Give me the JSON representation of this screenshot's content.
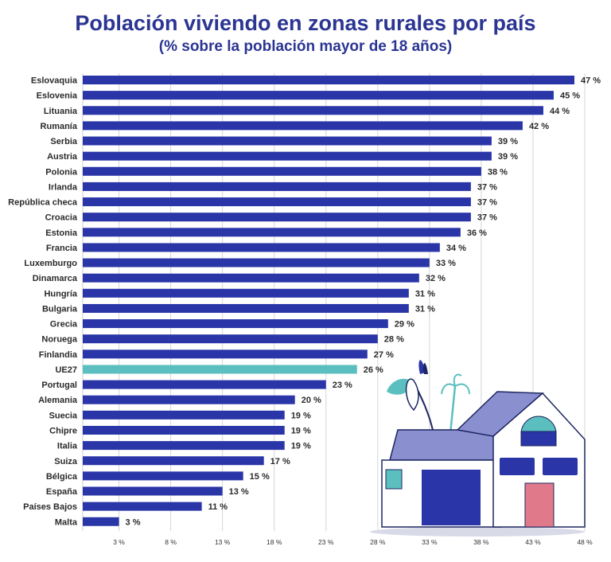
{
  "title": "Población viviendo en zonas rurales por país",
  "subtitle": "(% sobre la población mayor de 18 años)",
  "colors": {
    "bar": "#2a35a8",
    "highlight": "#5cbfbf",
    "title": "#2b3592"
  },
  "chart_data": {
    "type": "bar",
    "orientation": "horizontal",
    "title": "Población viviendo en zonas rurales por país",
    "subtitle": "(% sobre la población mayor de 18 años)",
    "categories": [
      "Eslovaquia",
      "Eslovenia",
      "Lituania",
      "Rumanía",
      "Serbia",
      "Austria",
      "Polonia",
      "Irlanda",
      "República checa",
      "Croacia",
      "Estonia",
      "Francia",
      "Luxemburgo",
      "Dinamarca",
      "Hungría",
      "Bulgaria",
      "Grecia",
      "Noruega",
      "Finlandia",
      "UE27",
      "Portugal",
      "Alemania",
      "Suecia",
      "Chipre",
      "Italia",
      "Suiza",
      "Bélgica",
      "España",
      "Países Bajos",
      "Malta"
    ],
    "values": [
      47,
      45,
      44,
      42,
      39,
      39,
      38,
      37,
      37,
      37,
      36,
      34,
      33,
      32,
      31,
      31,
      29,
      28,
      27,
      26,
      23,
      20,
      19,
      19,
      19,
      17,
      15,
      13,
      11,
      3
    ],
    "value_labels": [
      "47 %",
      "45 %",
      "44 %",
      "42 %",
      "39 %",
      "39 %",
      "38 %",
      "37 %",
      "37 %",
      "37 %",
      "36 %",
      "34 %",
      "33 %",
      "32 %",
      "31 %",
      "31 %",
      "29 %",
      "28 %",
      "27 %",
      "26 %",
      "23 %",
      "20 %",
      "19 %",
      "19 %",
      "19 %",
      "17 %",
      "15 %",
      "13 %",
      "11 %",
      "3 %"
    ],
    "highlight_category": "UE27",
    "x_ticks": [
      3,
      8,
      13,
      18,
      23,
      28,
      33,
      38,
      43,
      48
    ],
    "x_tick_labels": [
      "3 %",
      "8 %",
      "13 %",
      "18 %",
      "23 %",
      "28 %",
      "33 %",
      "38 %",
      "43 %",
      "48 %"
    ],
    "xlim": [
      -0.5,
      48
    ],
    "grid": true,
    "legend": "none"
  }
}
